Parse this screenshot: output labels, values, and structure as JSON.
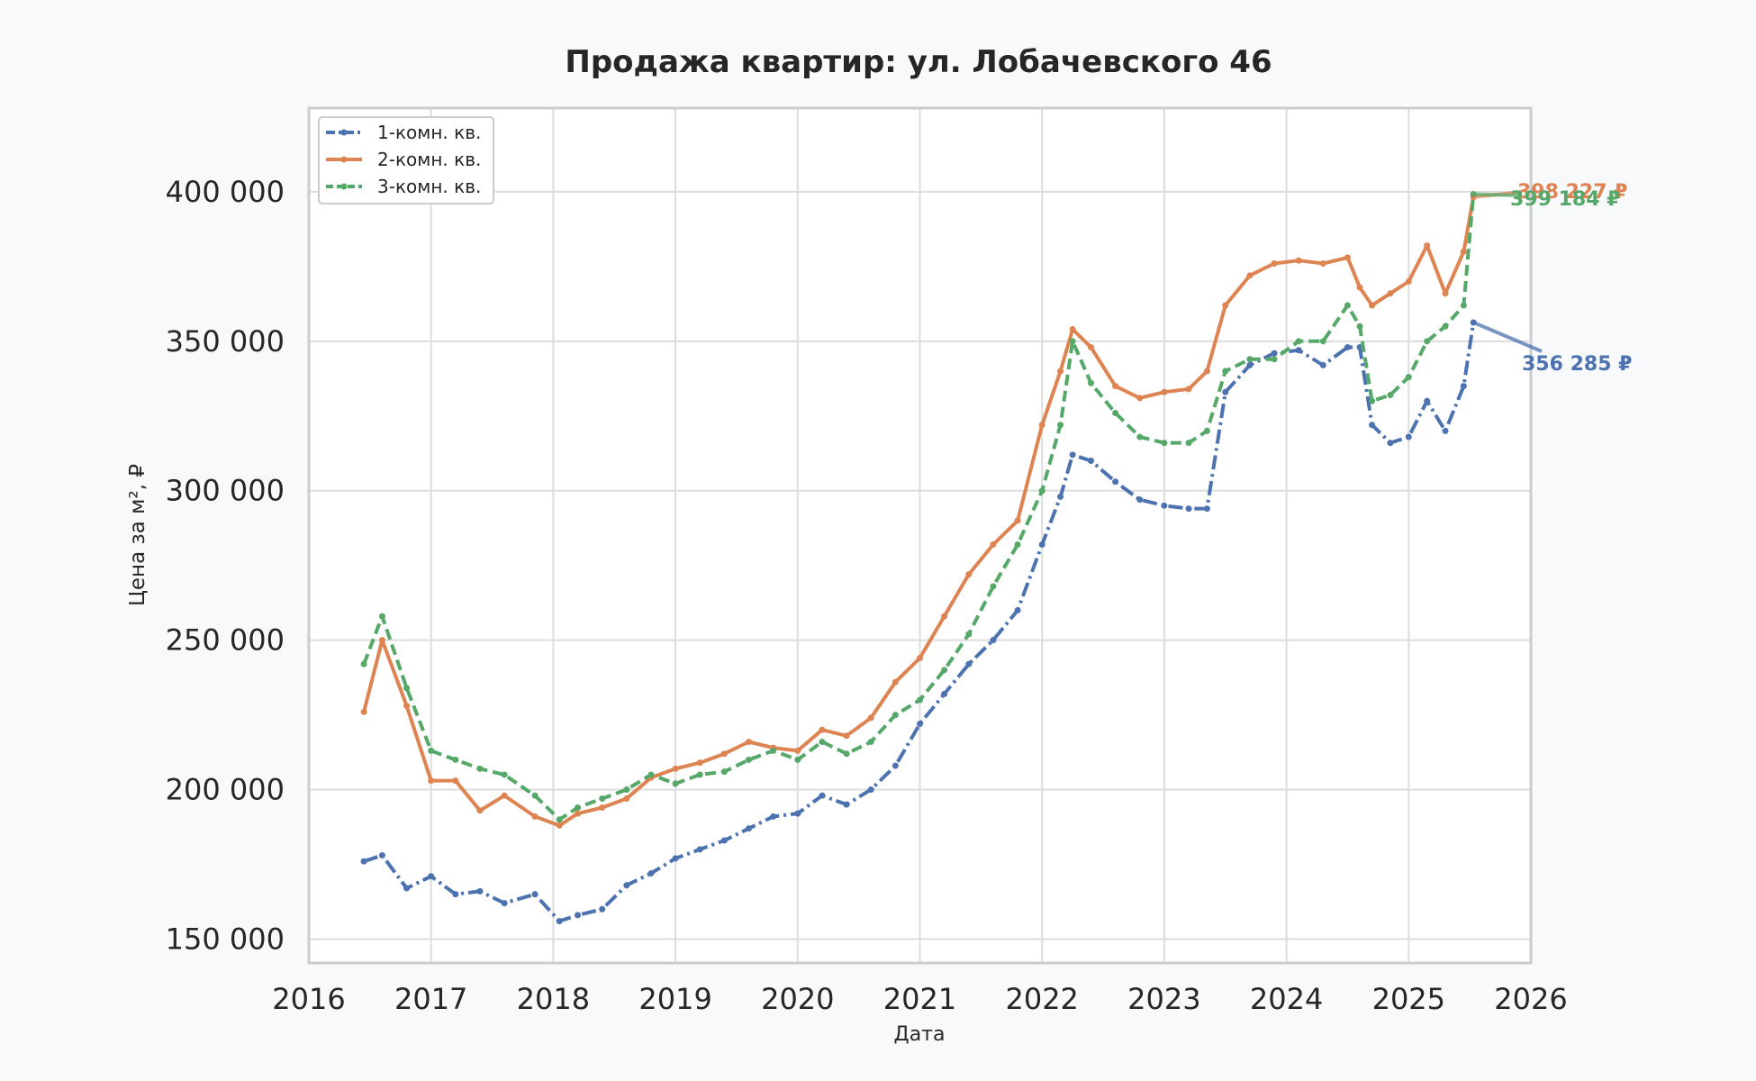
{
  "chart_data": {
    "type": "line",
    "title": "Продажа квартир: ул. Лобачевского 46",
    "xlabel": "Дата",
    "ylabel": "Цена за м², ₽",
    "xlim": [
      2016,
      2026
    ],
    "ylim": [
      142000,
      428000
    ],
    "x_ticks": [
      "2016",
      "2017",
      "2018",
      "2019",
      "2020",
      "2021",
      "2022",
      "2023",
      "2024",
      "2025",
      "2026"
    ],
    "y_ticks": [
      {
        "value": 150000,
        "label": "150 000"
      },
      {
        "value": 200000,
        "label": "200 000"
      },
      {
        "value": 250000,
        "label": "250 000"
      },
      {
        "value": 300000,
        "label": "300 000"
      },
      {
        "value": 350000,
        "label": "350 000"
      },
      {
        "value": 400000,
        "label": "400 000"
      }
    ],
    "grid": true,
    "legend_position": "top-left",
    "x": [
      2016.45,
      2016.6,
      2016.8,
      2017.0,
      2017.2,
      2017.4,
      2017.6,
      2017.85,
      2018.05,
      2018.2,
      2018.4,
      2018.6,
      2018.8,
      2019.0,
      2019.2,
      2019.4,
      2019.6,
      2019.8,
      2020.0,
      2020.2,
      2020.4,
      2020.6,
      2020.8,
      2021.0,
      2021.2,
      2021.4,
      2021.6,
      2021.8,
      2022.0,
      2022.15,
      2022.25,
      2022.4,
      2022.6,
      2022.8,
      2023.0,
      2023.2,
      2023.35,
      2023.5,
      2023.7,
      2023.9,
      2024.1,
      2024.3,
      2024.5,
      2024.6,
      2024.7,
      2024.85,
      2025.0,
      2025.15,
      2025.3,
      2025.45,
      2025.53
    ],
    "series": [
      {
        "name": "1-комн. кв.",
        "color": "#4c72b0",
        "end_label": "356 285 ₽",
        "values": [
          176000,
          178000,
          167000,
          171000,
          165000,
          166000,
          162000,
          165000,
          156000,
          158000,
          160000,
          168000,
          172000,
          177000,
          180000,
          183000,
          187000,
          191000,
          192000,
          198000,
          195000,
          200000,
          208000,
          222000,
          232000,
          242000,
          250000,
          260000,
          282000,
          298000,
          312000,
          310000,
          303000,
          297000,
          295000,
          294000,
          294000,
          333000,
          342000,
          346000,
          347000,
          342000,
          348000,
          348000,
          322000,
          316000,
          318000,
          330000,
          320000,
          335000,
          356285
        ]
      },
      {
        "name": "2-комн. кв.",
        "color": "#dd8452",
        "end_label": "398 227 ₽",
        "values": [
          226000,
          250000,
          228000,
          203000,
          203000,
          193000,
          198000,
          191000,
          188000,
          192000,
          194000,
          197000,
          204000,
          207000,
          209000,
          212000,
          216000,
          214000,
          213000,
          220000,
          218000,
          224000,
          236000,
          244000,
          258000,
          272000,
          282000,
          290000,
          322000,
          340000,
          354000,
          348000,
          335000,
          331000,
          333000,
          334000,
          340000,
          362000,
          372000,
          376000,
          377000,
          376000,
          378000,
          368000,
          362000,
          366000,
          370000,
          382000,
          366000,
          380000,
          398227
        ]
      },
      {
        "name": "3-комн. кв.",
        "color": "#55a868",
        "end_label": "399 184 ₽",
        "values": [
          242000,
          258000,
          234000,
          213000,
          210000,
          207000,
          205000,
          198000,
          190000,
          194000,
          197000,
          200000,
          205000,
          202000,
          205000,
          206000,
          210000,
          213000,
          210000,
          216000,
          212000,
          216000,
          225000,
          230000,
          240000,
          252000,
          268000,
          282000,
          300000,
          322000,
          350000,
          336000,
          326000,
          318000,
          316000,
          316000,
          320000,
          340000,
          344000,
          344000,
          350000,
          350000,
          362000,
          355000,
          330000,
          332000,
          338000,
          350000,
          355000,
          362000,
          399184
        ]
      }
    ]
  }
}
